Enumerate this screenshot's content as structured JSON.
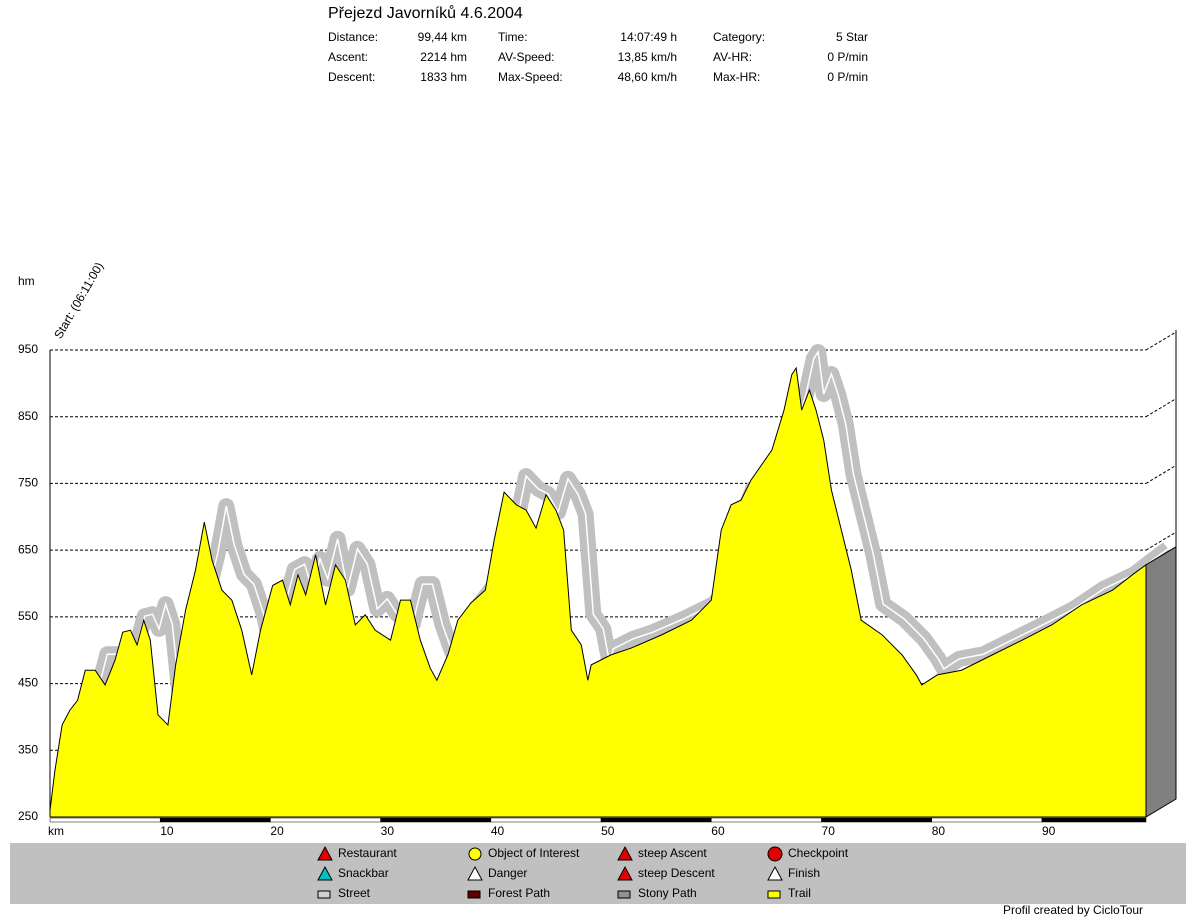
{
  "header": {
    "title": "Přejezd Javorníků 4.6.2004",
    "stats": [
      [
        "Distance:",
        "99,44 km",
        "Time:",
        "14:07:49 h",
        "Category:",
        "5 Star"
      ],
      [
        "Ascent:",
        "2214 hm",
        "AV-Speed:",
        "13,85 km/h",
        "AV-HR:",
        "0 P/min"
      ],
      [
        "Descent:",
        "1833 hm",
        "Max-Speed:",
        "48,60 km/h",
        "Max-HR:",
        "0 P/min"
      ]
    ]
  },
  "chart_data": {
    "type": "area",
    "ylabel": "hm",
    "xlabel": "km",
    "annotation": "Start: (06:11:00)",
    "color": "#ffff00",
    "shadow_color": "#c0c0c0",
    "x": [
      0,
      0.45,
      1.1,
      1.8,
      2.5,
      3.2,
      4.1,
      5,
      5.9,
      6.6,
      7.3,
      7.9,
      8.5,
      9.1,
      9.8,
      10.7,
      11.4,
      12.3,
      13.2,
      14,
      14.7,
      15.6,
      16.5,
      17.4,
      18.3,
      19.1,
      20.2,
      21.1,
      21.8,
      22.5,
      23.2,
      24.1,
      25,
      25.9,
      26.8,
      27.7,
      28.6,
      29.5,
      30.9,
      31.8,
      32.7,
      33.6,
      34.5,
      35.1,
      36.1,
      37,
      38.2,
      39.5,
      40.3,
      41.2,
      42.3,
      43.2,
      44.1,
      45,
      45.9,
      46.6,
      47.3,
      48.2,
      48.8,
      49.1,
      50.9,
      52.7,
      55.5,
      58.2,
      60,
      60.9,
      61.8,
      62.7,
      63.6,
      65.5,
      66.6,
      67.3,
      67.7,
      68.2,
      68.9,
      69.5,
      70.2,
      70.9,
      71.8,
      72.7,
      73.6,
      75.5,
      77.3,
      78.6,
      79.1,
      80.5,
      82.7,
      85.5,
      88.2,
      90.9,
      93.6,
      96.4,
      98.2,
      99.44
    ],
    "values": [
      260,
      320,
      388,
      410,
      425,
      470,
      470,
      448,
      485,
      527,
      530,
      508,
      545,
      515,
      403,
      388,
      478,
      560,
      620,
      692,
      635,
      590,
      575,
      530,
      463,
      530,
      597,
      605,
      568,
      613,
      583,
      643,
      568,
      628,
      605,
      538,
      553,
      530,
      515,
      575,
      575,
      515,
      473,
      455,
      493,
      545,
      571,
      590,
      665,
      737,
      718,
      710,
      683,
      733,
      710,
      680,
      530,
      508,
      455,
      478,
      493,
      503,
      523,
      545,
      575,
      680,
      718,
      725,
      755,
      800,
      860,
      913,
      923,
      860,
      890,
      860,
      815,
      740,
      680,
      620,
      545,
      523,
      493,
      463,
      448,
      463,
      470,
      493,
      515,
      538,
      568,
      590,
      613,
      628
    ],
    "xlim": [
      0,
      99.44
    ],
    "ylim": [
      250,
      950
    ],
    "xticks": [
      10,
      20,
      30,
      40,
      50,
      60,
      70,
      80,
      90
    ],
    "yticks": [
      250,
      350,
      450,
      550,
      650,
      750,
      850,
      950
    ],
    "grid": true
  },
  "legend": [
    "Restaurant",
    "Snackbar",
    "Street",
    "Object of Interest",
    "Danger",
    "Forest Path",
    "steep Ascent",
    "steep Descent",
    "Stony Path",
    "Checkpoint",
    "Finish",
    "Trail"
  ],
  "footer": "Profil created by CicloTour"
}
